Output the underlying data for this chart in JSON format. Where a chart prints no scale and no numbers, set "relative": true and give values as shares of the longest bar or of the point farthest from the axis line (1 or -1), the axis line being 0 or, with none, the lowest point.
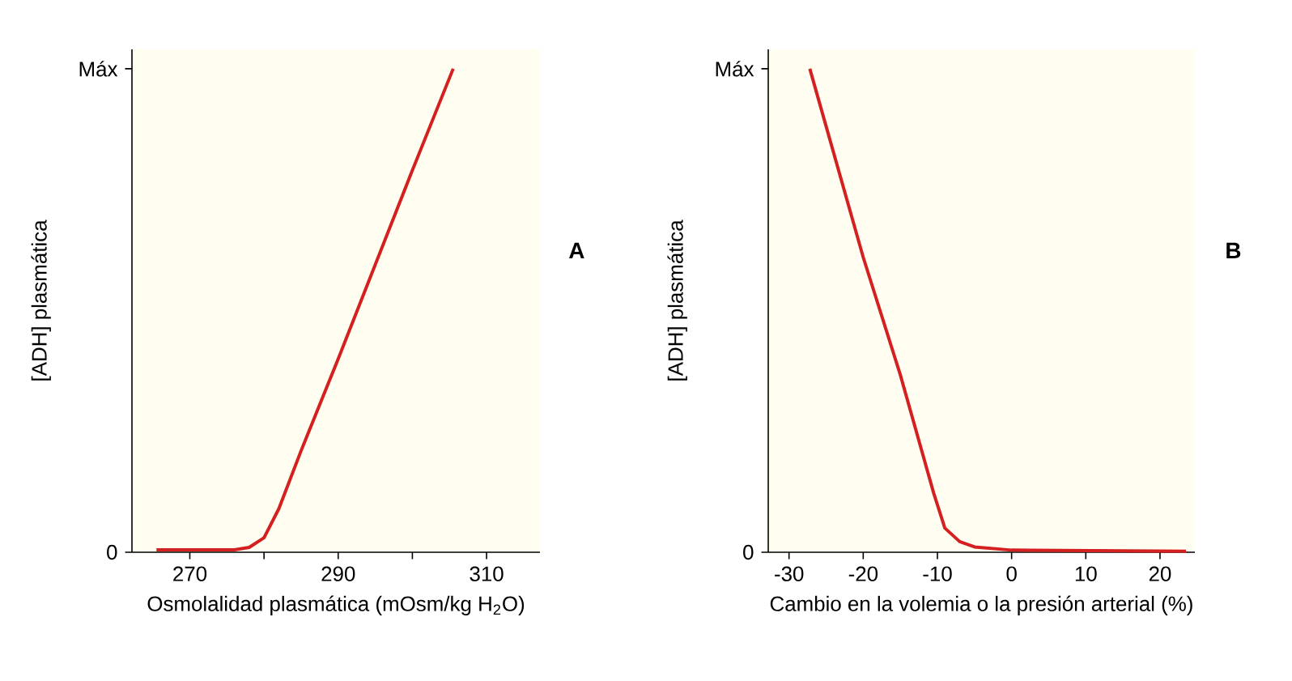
{
  "chart_data": [
    {
      "type": "line",
      "relative": true,
      "xlabel": "Osmolalidad plasmática (mOsm/kg H$_{2}$O)",
      "ylabel": "[ADH] plasmática",
      "annotations": [
        "A",
        "0",
        "Máx"
      ],
      "x": [
        265.5,
        276,
        278,
        280,
        282,
        285,
        290,
        300,
        305.5
      ],
      "series": [
        {
          "color": "#d42020",
          "values": [
            0.005,
            0.005,
            0.01,
            0.03,
            0.09,
            0.21,
            0.4,
            0.79,
            1.0
          ]
        }
      ],
      "xlim": [
        262.2,
        317.2
      ],
      "xticks": [
        270,
        {
          "value": 280,
          "label": null
        },
        290,
        {
          "value": 300,
          "label": null
        },
        310
      ]
    },
    {
      "type": "line",
      "relative": true,
      "xlabel": "Cambio en la volemia o la presión arterial (%)",
      "ylabel": "[ADH] plasmática",
      "annotations": [
        "B",
        "0",
        "Máx"
      ],
      "x": [
        -27.2,
        -20,
        -15,
        -10.5,
        -9,
        -7,
        -5,
        0,
        23.5
      ],
      "series": [
        {
          "color": "#d42020",
          "values": [
            1.0,
            0.61,
            0.367,
            0.122,
            0.05,
            0.022,
            0.011,
            0.0044,
            0.0022
          ]
        }
      ],
      "xlim": [
        -32.8,
        24.7
      ],
      "xticks": [
        -30,
        -20,
        -10,
        0,
        10,
        20
      ]
    }
  ]
}
